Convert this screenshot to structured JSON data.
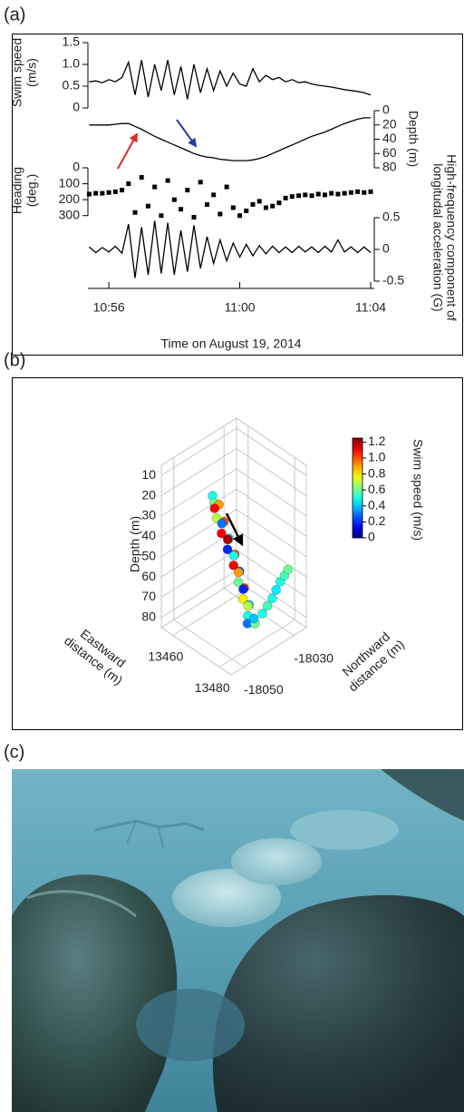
{
  "panel_labels": [
    "(a)",
    "(b)",
    "(c)"
  ],
  "chart_data": [
    {
      "type": "stacked-line",
      "x": [
        655.4,
        655.6,
        655.8,
        656,
        656.2,
        656.4,
        656.6,
        656.8,
        657,
        657.2,
        657.4,
        657.6,
        657.8,
        658,
        658.2,
        658.4,
        658.6,
        658.8,
        659,
        659.2,
        659.4,
        659.6,
        659.8,
        660,
        660.2,
        660.4,
        660.6,
        660.8,
        661,
        661.2,
        661.4,
        661.6,
        661.8,
        662,
        662.2,
        662.4,
        662.6,
        662.8,
        663,
        663.2,
        663.4,
        663.6,
        663.8,
        664
      ],
      "xlim": [
        655.36,
        664.11
      ],
      "xticks": [
        {
          "value": 656,
          "label": "10:56"
        },
        {
          "value": 660,
          "label": "11:00"
        },
        {
          "value": 664,
          "label": "11:04"
        }
      ],
      "xlabel": "Time on August 19, 2014",
      "panels": [
        {
          "ylabel": [
            "Swim speed",
            "(m/s)"
          ],
          "side": "left",
          "style": "line",
          "inverted": false,
          "color": "#000000",
          "ylim": [
            0,
            1.5
          ],
          "yticks": [
            0,
            0.5,
            {
              "value": 1,
              "label": "1.0"
            },
            1.5
          ],
          "values": [
            0.6,
            0.62,
            0.58,
            0.65,
            0.6,
            0.7,
            1.05,
            0.3,
            1.1,
            0.25,
            1.0,
            0.4,
            1.1,
            0.3,
            0.95,
            0.2,
            1.0,
            0.35,
            0.9,
            0.4,
            0.85,
            0.5,
            0.8,
            0.55,
            0.5,
            0.9,
            0.6,
            0.75,
            0.65,
            0.7,
            0.6,
            0.65,
            0.58,
            0.6,
            0.55,
            0.52,
            0.5,
            0.48,
            0.45,
            0.42,
            0.4,
            0.38,
            0.35,
            0.3
          ]
        },
        {
          "ylabel": "Depth (m)",
          "side": "right",
          "style": "line",
          "inverted": true,
          "color": "#000000",
          "ylim": [
            0,
            80
          ],
          "yticks": [
            0,
            20,
            40,
            60,
            80
          ],
          "values": [
            20,
            20,
            20,
            20,
            19,
            18,
            18,
            22,
            26,
            31,
            36,
            40,
            44,
            48,
            52,
            56,
            60,
            63,
            65,
            66,
            68,
            69,
            70,
            70,
            70,
            69,
            67,
            64,
            60,
            56,
            52,
            48,
            44,
            40,
            36,
            33,
            30,
            26,
            22,
            18,
            15,
            12,
            10,
            10
          ]
        },
        {
          "ylabel": [
            "Heading",
            "(deg.)"
          ],
          "side": "left",
          "style": "markers",
          "inverted": true,
          "color": "#000000",
          "ylim": [
            0,
            330
          ],
          "yticks": [
            0,
            100,
            200,
            300
          ],
          "values": [
            165,
            160,
            160,
            155,
            150,
            140,
            100,
            280,
            60,
            240,
            120,
            300,
            80,
            200,
            260,
            140,
            310,
            90,
            230,
            170,
            290,
            120,
            250,
            300,
            270,
            230,
            210,
            250,
            240,
            220,
            190,
            180,
            175,
            170,
            175,
            165,
            170,
            160,
            165,
            160,
            155,
            150,
            155,
            150
          ]
        },
        {
          "ylabel": [
            "High-frequency component of",
            "longitudal acceleration (G)"
          ],
          "side": "right",
          "style": "line",
          "inverted": false,
          "color": "#000000",
          "ylim": [
            -0.6,
            0.6
          ],
          "yticks": [
            0.5,
            0,
            -0.5
          ],
          "values": [
            0.04,
            -0.05,
            0.03,
            -0.04,
            0.05,
            -0.06,
            0.4,
            -0.45,
            0.35,
            -0.4,
            0.45,
            -0.38,
            0.42,
            -0.4,
            0.3,
            -0.35,
            0.38,
            -0.3,
            0.2,
            -0.22,
            0.15,
            -0.18,
            0.1,
            -0.12,
            0.08,
            -0.1,
            0.06,
            -0.07,
            0.05,
            -0.05,
            0.04,
            -0.05,
            0.05,
            -0.04,
            0.04,
            -0.05,
            0.05,
            -0.04,
            0.15,
            -0.04,
            0.04,
            -0.05,
            0.04,
            -0.05
          ]
        }
      ]
    },
    {
      "type": "scatter3d",
      "xlabel": [
        "Eastward",
        "distance (m)"
      ],
      "ylabel": [
        "Northward",
        "distance (m)"
      ],
      "zlabel": "Depth (m)",
      "xlim": [
        13455,
        13485
      ],
      "xticks": [
        13460,
        13480
      ],
      "ylim": [
        -18055,
        -18025
      ],
      "yticks": [
        -18050,
        -18030
      ],
      "zlim": [
        5,
        85
      ],
      "zticks": [
        10,
        20,
        30,
        40,
        50,
        60,
        70,
        80
      ],
      "colormap": "jet",
      "clim": [
        0,
        1.25
      ],
      "cticks": [
        0,
        0.2,
        0.4,
        0.6,
        0.8,
        {
          "value": 1,
          "label": "1.0"
        },
        1.2
      ],
      "colorbar_label": "Swim speed (m/s)",
      "x": [
        13465.6,
        13467,
        13466.8,
        13465.5,
        13467.5,
        13468.5,
        13467,
        13468.5,
        13470,
        13468.5,
        13470,
        13471.5,
        13470,
        13471.5,
        13473,
        13471.5,
        13473,
        13474.5,
        13473,
        13474.5,
        13476,
        13474.5,
        13476,
        13477.5,
        13478,
        13476.5,
        13478,
        13478.5,
        13479,
        13479,
        13479.2,
        13479.4,
        13479.4
      ],
      "y": [
        -18044.4,
        -18045,
        -18043,
        -18043.5,
        -18044.5,
        -18042.5,
        -18042,
        -18043.5,
        -18042,
        -18041,
        -18042.5,
        -18041,
        -18040,
        -18041.5,
        -18040.5,
        -18039.5,
        -18041,
        -18040,
        -18039,
        -18040.5,
        -18039.5,
        -18038.5,
        -18040,
        -18041.5,
        -18039,
        -18038,
        -18036,
        -18034.5,
        -18033,
        -18031.5,
        -18030,
        -18028.5,
        -18027.1
      ],
      "z": [
        20,
        22,
        24.5,
        27,
        29.5,
        32,
        34.5,
        37,
        39.5,
        42,
        44.5,
        47,
        49.5,
        52,
        54.5,
        57,
        59.5,
        62,
        64.5,
        67,
        69.5,
        72,
        74.5,
        76,
        77.5,
        77,
        75,
        72,
        69,
        66,
        63,
        61,
        59
      ],
      "c": [
        0.5,
        0.6,
        0.9,
        1.1,
        0.7,
        1.0,
        0.3,
        1.1,
        0.4,
        1.2,
        0.2,
        1.0,
        0.5,
        1.1,
        0.3,
        0.9,
        0.6,
        1.0,
        0.2,
        0.8,
        0.4,
        0.7,
        0.5,
        0.3,
        0.6,
        0.4,
        0.5,
        0.55,
        0.5,
        0.45,
        0.5,
        0.55,
        0.6
      ]
    }
  ]
}
